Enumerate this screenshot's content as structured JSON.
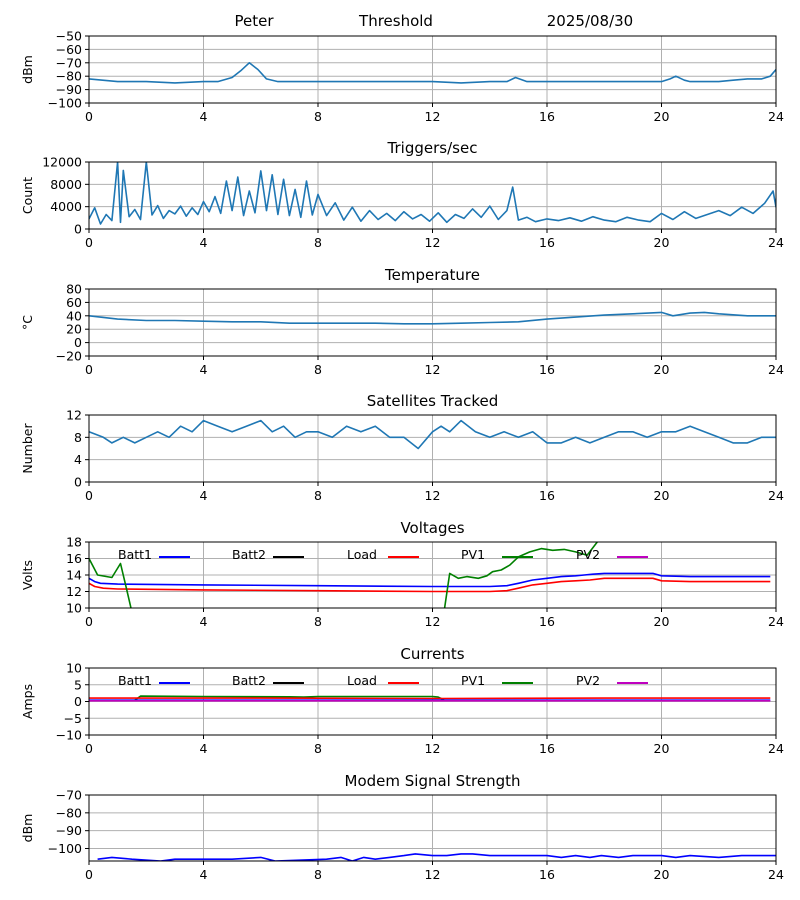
{
  "header": {
    "station": "Peter",
    "mode": "Threshold",
    "date": "2025/08/30"
  },
  "colors": {
    "series": "#1f77b4",
    "grid": "#b0b0b0",
    "batt1": "#0000ff",
    "batt2": "#000000",
    "load": "#ff0000",
    "pv1": "#008000",
    "pv2": "#bf00bf"
  },
  "chart_data": [
    {
      "type": "line",
      "title": "",
      "ylabel": "dBm",
      "xlim": [
        0,
        24
      ],
      "ylim": [
        -100,
        -50
      ],
      "yticks": [
        -50,
        -60,
        -70,
        -80,
        -90,
        -100
      ],
      "ytick_labels": [
        "−50",
        "−60",
        "−70",
        "−80",
        "−90",
        "−100"
      ],
      "xticks": [
        0,
        4,
        8,
        12,
        16,
        20,
        24
      ],
      "grid": true,
      "series": [
        {
          "x": [
            0,
            1,
            2,
            3,
            4,
            4.5,
            5,
            5.3,
            5.6,
            5.9,
            6.2,
            6.6,
            7,
            8,
            10,
            12,
            13,
            14,
            14.6,
            14.9,
            15.3,
            16,
            18,
            19,
            20,
            20.3,
            20.5,
            20.8,
            21,
            22,
            22.5,
            23,
            23.5,
            23.8,
            24
          ],
          "y": [
            -82,
            -84,
            -84,
            -85,
            -84,
            -84,
            -81,
            -76,
            -70,
            -75,
            -82,
            -84,
            -84,
            -84,
            -84,
            -84,
            -85,
            -84,
            -84,
            -81,
            -84,
            -84,
            -84,
            -84,
            -84,
            -82,
            -80,
            -83,
            -84,
            -84,
            -83,
            -82,
            -82,
            -80,
            -75
          ]
        }
      ]
    },
    {
      "type": "line",
      "title": "Triggers/sec",
      "ylabel": "Count",
      "xlim": [
        0,
        24
      ],
      "ylim": [
        0,
        12000
      ],
      "yticks": [
        0,
        4000,
        8000,
        12000
      ],
      "ytick_labels": [
        "0",
        "4000",
        "8000",
        "12000"
      ],
      "xticks": [
        0,
        4,
        8,
        12,
        16,
        20,
        24
      ],
      "grid": true,
      "series": [
        {
          "x": [
            0,
            0.2,
            0.4,
            0.6,
            0.8,
            1.0,
            1.1,
            1.2,
            1.4,
            1.6,
            1.8,
            2.0,
            2.2,
            2.4,
            2.6,
            2.8,
            3.0,
            3.2,
            3.4,
            3.6,
            3.8,
            4.0,
            4.2,
            4.4,
            4.6,
            4.8,
            5.0,
            5.2,
            5.4,
            5.6,
            5.8,
            6.0,
            6.2,
            6.4,
            6.6,
            6.8,
            7.0,
            7.2,
            7.4,
            7.6,
            7.8,
            8.0,
            8.3,
            8.6,
            8.9,
            9.2,
            9.5,
            9.8,
            10.1,
            10.4,
            10.7,
            11.0,
            11.3,
            11.6,
            11.9,
            12.2,
            12.5,
            12.8,
            13.1,
            13.4,
            13.7,
            14.0,
            14.3,
            14.6,
            14.8,
            15.0,
            15.3,
            15.6,
            16.0,
            16.4,
            16.8,
            17.2,
            17.6,
            18.0,
            18.4,
            18.8,
            19.2,
            19.6,
            20.0,
            20.4,
            20.8,
            21.2,
            21.6,
            22.0,
            22.4,
            22.8,
            23.2,
            23.6,
            23.9,
            24
          ],
          "y": [
            1800,
            3800,
            900,
            2600,
            1500,
            12000,
            1200,
            10500,
            2200,
            3500,
            1700,
            12000,
            2500,
            4200,
            1900,
            3300,
            2700,
            4100,
            2300,
            3800,
            2600,
            4900,
            3100,
            5800,
            2800,
            8600,
            3300,
            9300,
            2400,
            6800,
            2900,
            10400,
            3300,
            9700,
            2600,
            8900,
            2400,
            7100,
            2100,
            8600,
            2500,
            6200,
            2400,
            4700,
            1600,
            3900,
            1400,
            3300,
            1700,
            2800,
            1500,
            3100,
            1800,
            2600,
            1400,
            2900,
            1200,
            2600,
            1900,
            3600,
            2100,
            4100,
            1700,
            3300,
            7500,
            1600,
            2100,
            1300,
            1800,
            1500,
            2000,
            1400,
            2200,
            1600,
            1300,
            2100,
            1600,
            1300,
            2800,
            1700,
            3100,
            1900,
            2600,
            3300,
            2400,
            3900,
            2800,
            4600,
            6800,
            3900
          ]
        }
      ]
    },
    {
      "type": "line",
      "title": "Temperature",
      "ylabel": "°C",
      "xlim": [
        0,
        24
      ],
      "ylim": [
        -20,
        80
      ],
      "yticks": [
        80,
        60,
        40,
        20,
        0,
        -20
      ],
      "ytick_labels": [
        "80",
        "60",
        "40",
        "20",
        "0",
        "−20"
      ],
      "xticks": [
        0,
        4,
        8,
        12,
        16,
        20,
        24
      ],
      "grid": true,
      "series": [
        {
          "x": [
            0,
            1,
            2,
            3,
            4,
            5,
            6,
            7,
            8,
            9,
            10,
            11,
            12,
            13,
            14,
            15,
            16,
            17,
            18,
            19,
            20,
            20.4,
            21,
            21.5,
            22,
            23,
            24
          ],
          "y": [
            40,
            35,
            33,
            33,
            32,
            31,
            31,
            29,
            29,
            29,
            29,
            28,
            28,
            29,
            30,
            31,
            35,
            38,
            41,
            43,
            45,
            40,
            44,
            45,
            43,
            40,
            40
          ]
        }
      ]
    },
    {
      "type": "line",
      "title": "Satellites Tracked",
      "ylabel": "Number",
      "xlim": [
        0,
        24
      ],
      "ylim": [
        0,
        12
      ],
      "yticks": [
        0,
        4,
        8,
        12
      ],
      "ytick_labels": [
        "0",
        "4",
        "8",
        "12"
      ],
      "xticks": [
        0,
        4,
        8,
        12,
        16,
        20,
        24
      ],
      "grid": true,
      "series": [
        {
          "x": [
            0,
            0.5,
            0.8,
            1.2,
            1.6,
            2.0,
            2.4,
            2.8,
            3.2,
            3.6,
            4.0,
            4.5,
            5.0,
            5.5,
            6.0,
            6.4,
            6.8,
            7.2,
            7.6,
            8.0,
            8.5,
            9.0,
            9.5,
            10.0,
            10.5,
            11.0,
            11.5,
            12.0,
            12.3,
            12.6,
            13.0,
            13.5,
            14.0,
            14.5,
            15.0,
            15.5,
            16.0,
            16.5,
            17.0,
            17.5,
            18.0,
            18.5,
            19.0,
            19.5,
            20.0,
            20.5,
            21.0,
            21.5,
            22.0,
            22.5,
            23.0,
            23.5,
            24
          ],
          "y": [
            9,
            8,
            7,
            8,
            7,
            8,
            9,
            8,
            10,
            9,
            11,
            10,
            9,
            10,
            11,
            9,
            10,
            8,
            9,
            9,
            8,
            10,
            9,
            10,
            8,
            8,
            6,
            9,
            10,
            9,
            11,
            9,
            8,
            9,
            8,
            9,
            7,
            7,
            8,
            7,
            8,
            9,
            9,
            8,
            9,
            9,
            10,
            9,
            8,
            7,
            7,
            8,
            8
          ]
        }
      ]
    },
    {
      "type": "line",
      "title": "Voltages",
      "ylabel": "Volts",
      "xlim": [
        0,
        24
      ],
      "ylim": [
        10,
        18
      ],
      "yticks": [
        10,
        12,
        14,
        16,
        18
      ],
      "ytick_labels": [
        "10",
        "12",
        "14",
        "16",
        "18"
      ],
      "xticks": [
        0,
        4,
        8,
        12,
        16,
        20,
        24
      ],
      "grid": true,
      "legend": "top row",
      "series": [
        {
          "name": "Batt1",
          "color": "batt1",
          "x": [
            0,
            0.2,
            0.4,
            1,
            4,
            8,
            12,
            14,
            14.6,
            15,
            15.5,
            16,
            16.5,
            17,
            17.3,
            17.6,
            18,
            19,
            19.7,
            20,
            21,
            22,
            23,
            23.8
          ],
          "y": [
            13.6,
            13.2,
            13.0,
            12.9,
            12.8,
            12.7,
            12.6,
            12.6,
            12.7,
            13.0,
            13.4,
            13.6,
            13.8,
            13.9,
            14.0,
            14.1,
            14.2,
            14.2,
            14.2,
            13.9,
            13.8,
            13.8,
            13.8,
            13.8
          ]
        },
        {
          "name": "Load",
          "color": "load",
          "x": [
            0,
            0.2,
            0.5,
            1,
            4,
            8,
            12,
            14,
            14.6,
            15,
            15.5,
            16,
            16.5,
            17,
            17.5,
            18,
            19,
            19.7,
            20,
            21,
            22,
            23,
            23.8
          ],
          "y": [
            13.0,
            12.6,
            12.4,
            12.3,
            12.2,
            12.1,
            12.0,
            12.0,
            12.1,
            12.4,
            12.8,
            13.0,
            13.2,
            13.3,
            13.4,
            13.6,
            13.6,
            13.6,
            13.3,
            13.2,
            13.2,
            13.2,
            13.2
          ]
        },
        {
          "name": "PV1",
          "color": "pv1",
          "x": [
            0,
            0.3,
            0.8,
            1.1,
            1.3,
            1.5,
            12.4,
            12.6,
            12.9,
            13.2,
            13.6,
            13.9,
            14.1,
            14.4,
            14.7,
            15.0,
            15.4,
            15.8,
            16.2,
            16.6,
            17.0,
            17.4,
            17.8
          ],
          "y": [
            16.0,
            14.0,
            13.7,
            15.4,
            12.5,
            9.5,
            9.5,
            14.2,
            13.6,
            13.8,
            13.6,
            13.9,
            14.4,
            14.6,
            15.2,
            16.2,
            16.8,
            17.2,
            17.0,
            17.1,
            16.8,
            16.4,
            18.2
          ]
        }
      ],
      "legend_entries": [
        "Batt1",
        "Batt2",
        "Load",
        "PV1",
        "PV2"
      ]
    },
    {
      "type": "line",
      "title": "Currents",
      "ylabel": "Amps",
      "xlim": [
        0,
        24
      ],
      "ylim": [
        -10,
        10
      ],
      "yticks": [
        10,
        5,
        0,
        -5,
        -10
      ],
      "ytick_labels": [
        "10",
        "5",
        "0",
        "−5",
        "−10"
      ],
      "xticks": [
        0,
        4,
        8,
        12,
        16,
        20,
        24
      ],
      "grid": true,
      "legend": "top row",
      "series": [
        {
          "name": "PV1",
          "color": "pv1",
          "x": [
            1.6,
            1.8,
            4,
            7,
            7.5,
            8,
            12,
            12.2,
            12.4
          ],
          "y": [
            0.4,
            1.6,
            1.5,
            1.4,
            1.3,
            1.5,
            1.5,
            1.3,
            0.5
          ]
        },
        {
          "name": "Load",
          "color": "load",
          "x": [
            0,
            6,
            12,
            18,
            23.8
          ],
          "y": [
            1.0,
            1.0,
            0.9,
            1.0,
            1.0
          ]
        },
        {
          "name": "Batt1",
          "color": "batt1",
          "x": [
            0,
            23.8
          ],
          "y": [
            0.4,
            0.4
          ]
        },
        {
          "name": "PV2",
          "color": "pv2",
          "x": [
            0,
            23.8
          ],
          "y": [
            0.2,
            0.2
          ]
        }
      ],
      "legend_entries": [
        "Batt1",
        "Batt2",
        "Load",
        "PV1",
        "PV2"
      ]
    },
    {
      "type": "line",
      "title": "Modem Signal Strength",
      "ylabel": "dBm",
      "xlim": [
        0,
        24
      ],
      "ylim": [
        -107,
        -70
      ],
      "yticks": [
        -70,
        -80,
        -90,
        -100
      ],
      "ytick_labels": [
        "−70",
        "−80",
        "−90",
        "−100"
      ],
      "xticks": [
        0,
        4,
        8,
        12,
        16,
        20,
        24
      ],
      "grid": true,
      "series": [
        {
          "color": "batt1",
          "x": [
            0.3,
            0.8,
            1.5,
            2.5,
            3.0,
            5.0,
            6.0,
            6.5,
            8.3,
            8.8,
            9.2,
            9.6,
            10.0,
            10.5,
            11.0,
            11.4,
            12.0,
            12.5,
            13.0,
            13.4,
            14.0,
            15.0,
            16.0,
            16.5,
            17.0,
            17.5,
            17.9,
            18.5,
            19.0,
            20.0,
            20.5,
            21.0,
            22.0,
            22.8,
            24.0
          ],
          "y": [
            -106,
            -105,
            -106,
            -107,
            -106,
            -106,
            -105,
            -107,
            -106,
            -105,
            -107,
            -105,
            -106,
            -105,
            -104,
            -103,
            -104,
            -104,
            -103,
            -103,
            -104,
            -104,
            -104,
            -105,
            -104,
            -105,
            -104,
            -105,
            -104,
            -104,
            -105,
            -104,
            -105,
            -104,
            -104
          ]
        }
      ]
    }
  ],
  "xtick_labels": [
    "0",
    "4",
    "8",
    "12",
    "16",
    "20",
    "24"
  ]
}
